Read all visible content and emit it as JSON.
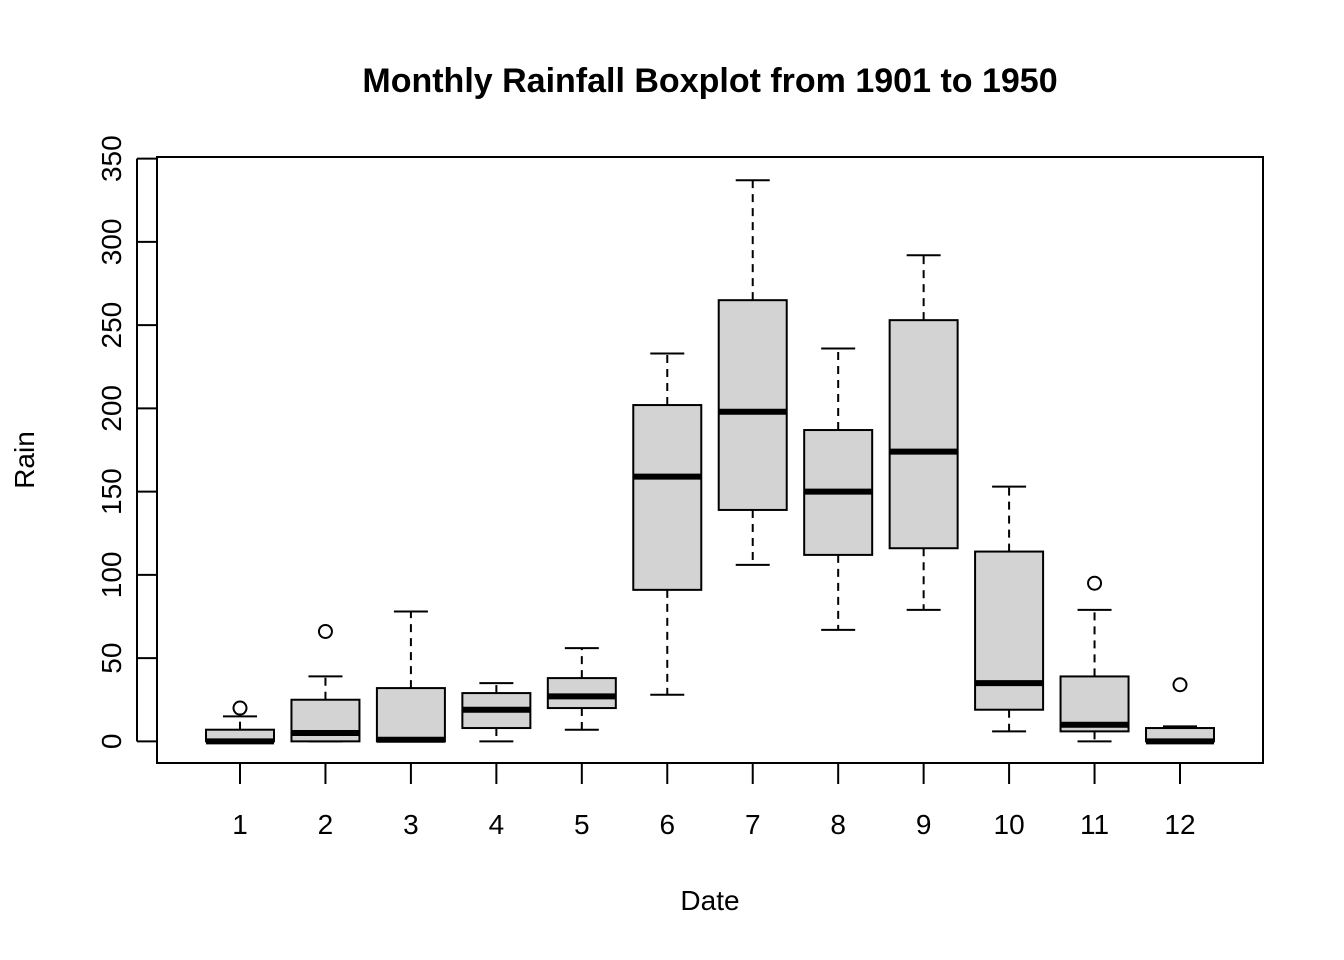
{
  "chart_data": {
    "type": "boxplot",
    "title": "Monthly Rainfall Boxplot from 1901 to 1950",
    "xlabel": "Date",
    "ylabel": "Rain",
    "ylim": [
      -13,
      351
    ],
    "yticks": [
      0,
      50,
      100,
      150,
      200,
      250,
      300,
      350
    ],
    "categories": [
      "1",
      "2",
      "3",
      "4",
      "5",
      "6",
      "7",
      "8",
      "9",
      "10",
      "11",
      "12"
    ],
    "boxes": [
      {
        "min": 0,
        "q1": 0,
        "median": 0,
        "q3": 7,
        "max": 15,
        "outliers": [
          20
        ]
      },
      {
        "min": 0,
        "q1": 0,
        "median": 5,
        "q3": 25,
        "max": 39,
        "outliers": [
          66
        ]
      },
      {
        "min": 0,
        "q1": 0,
        "median": 1,
        "q3": 32,
        "max": 78,
        "outliers": []
      },
      {
        "min": 0,
        "q1": 8,
        "median": 19,
        "q3": 29,
        "max": 35,
        "outliers": []
      },
      {
        "min": 7,
        "q1": 20,
        "median": 27,
        "q3": 38,
        "max": 56,
        "outliers": []
      },
      {
        "min": 28,
        "q1": 91,
        "median": 159,
        "q3": 202,
        "max": 233,
        "outliers": []
      },
      {
        "min": 106,
        "q1": 139,
        "median": 198,
        "q3": 265,
        "max": 337,
        "outliers": []
      },
      {
        "min": 67,
        "q1": 112,
        "median": 150,
        "q3": 187,
        "max": 236,
        "outliers": []
      },
      {
        "min": 79,
        "q1": 116,
        "median": 174,
        "q3": 253,
        "max": 292,
        "outliers": []
      },
      {
        "min": 6,
        "q1": 19,
        "median": 35,
        "q3": 114,
        "max": 153,
        "outliers": []
      },
      {
        "min": 0,
        "q1": 6,
        "median": 10,
        "q3": 39,
        "max": 79,
        "outliers": [
          95
        ]
      },
      {
        "min": 0,
        "q1": 0,
        "median": 0,
        "q3": 8,
        "max": 9,
        "outliers": [
          34
        ]
      }
    ],
    "box_fill": "#d3d3d3",
    "grid": false,
    "legend": "none"
  }
}
